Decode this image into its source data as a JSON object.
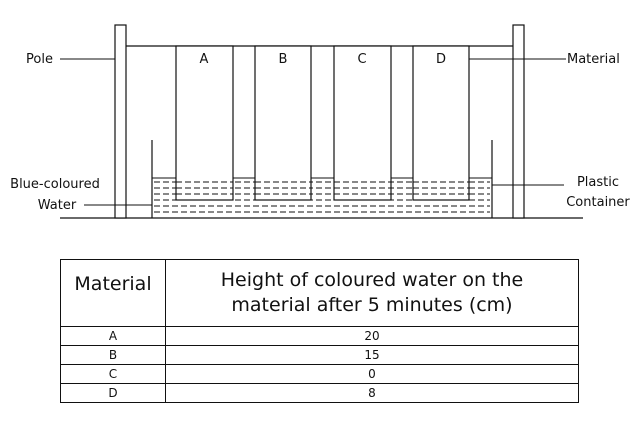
{
  "diagram": {
    "labels": {
      "pole": "Pole",
      "material": "Material",
      "blue_water_line1": "Blue-coloured",
      "blue_water_line2": "Water",
      "container_line1": "Plastic",
      "container_line2": "Container"
    },
    "strips": [
      "A",
      "B",
      "C",
      "D"
    ]
  },
  "table": {
    "header_col1": "Material",
    "header_col2_line1": "Height of coloured water on the",
    "header_col2_line2": "material after 5 minutes (cm)",
    "rows": [
      {
        "material": "A",
        "height": "20"
      },
      {
        "material": "B",
        "height": "15"
      },
      {
        "material": "C",
        "height": "0"
      },
      {
        "material": "D",
        "height": "8"
      }
    ]
  }
}
